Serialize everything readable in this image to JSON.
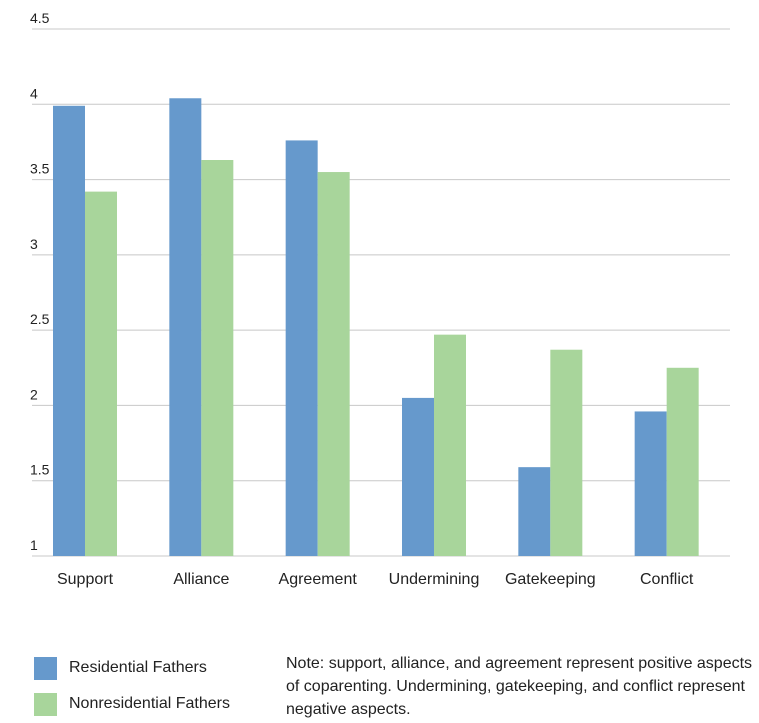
{
  "chart_data": {
    "type": "bar",
    "categories": [
      "Support",
      "Alliance",
      "Agreement",
      "Undermining",
      "Gatekeeping",
      "Conflict"
    ],
    "series": [
      {
        "name": "Residential Fathers",
        "color": "#6699cc",
        "values": [
          3.99,
          4.04,
          3.76,
          2.05,
          1.59,
          1.96
        ]
      },
      {
        "name": "Nonresidential Fathers",
        "color": "#a8d59b",
        "values": [
          3.42,
          3.63,
          3.55,
          2.47,
          2.37,
          2.25
        ]
      }
    ],
    "ylim": [
      1,
      4.5
    ],
    "yticks": [
      "1",
      "1.5",
      "2",
      "2.5",
      "3",
      "3.5",
      "4",
      "4.5"
    ],
    "grid": true,
    "legend_position": "bottom-left",
    "note": "Note: support, alliance, and agreement represent positive aspects of coparenting. Undermining, gatekeeping, and conflict represent negative aspects."
  }
}
